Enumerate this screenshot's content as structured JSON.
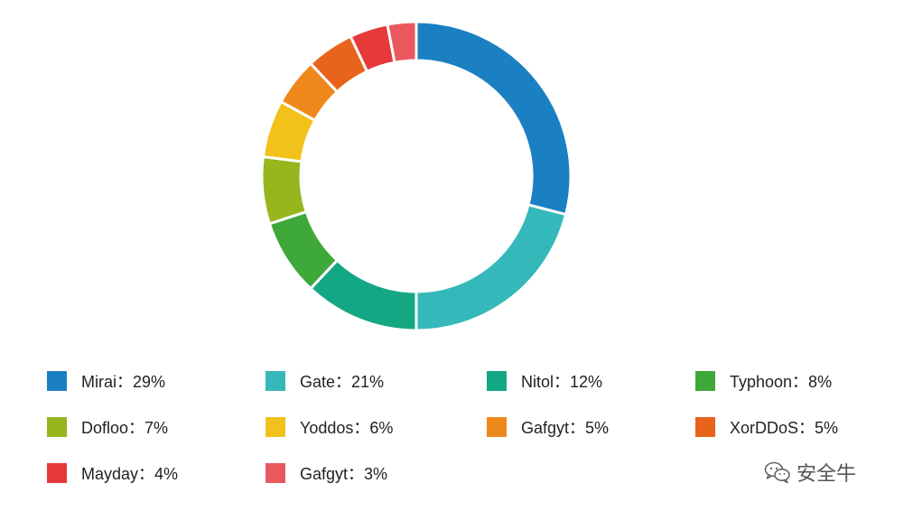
{
  "chart_data": {
    "type": "pie",
    "variant": "donut",
    "title": "",
    "legend_position": "bottom",
    "slices": [
      {
        "name": "Mirai",
        "label": "Mirai：29%",
        "value": 29,
        "color": "#1b80c2"
      },
      {
        "name": "Gate",
        "label": "Gate：21%",
        "value": 21,
        "color": "#35b8b9"
      },
      {
        "name": "Nitol",
        "label": "Nitol：12%",
        "value": 12,
        "color": "#13a883"
      },
      {
        "name": "Typhoon",
        "label": "Typhoon：8%",
        "value": 8,
        "color": "#3fa83a"
      },
      {
        "name": "Dofloo",
        "label": "Dofloo：7%",
        "value": 7,
        "color": "#97b61e"
      },
      {
        "name": "Yoddos",
        "label": "Yoddos：6%",
        "value": 6,
        "color": "#f2c21a"
      },
      {
        "name": "Gafgyt",
        "label": "Gafgyt：5%",
        "value": 5,
        "color": "#ef881c"
      },
      {
        "name": "XorDDoS",
        "label": "XorDDoS：5%",
        "value": 5,
        "color": "#e8631b"
      },
      {
        "name": "Mayday",
        "label": "Mayday：4%",
        "value": 4,
        "color": "#e5393a"
      },
      {
        "name": "Gafgyt",
        "label": "Gafgyt：3%",
        "value": 3,
        "color": "#e9585e"
      }
    ]
  },
  "watermark": {
    "text": "安全牛",
    "icon": "wechat-icon"
  }
}
